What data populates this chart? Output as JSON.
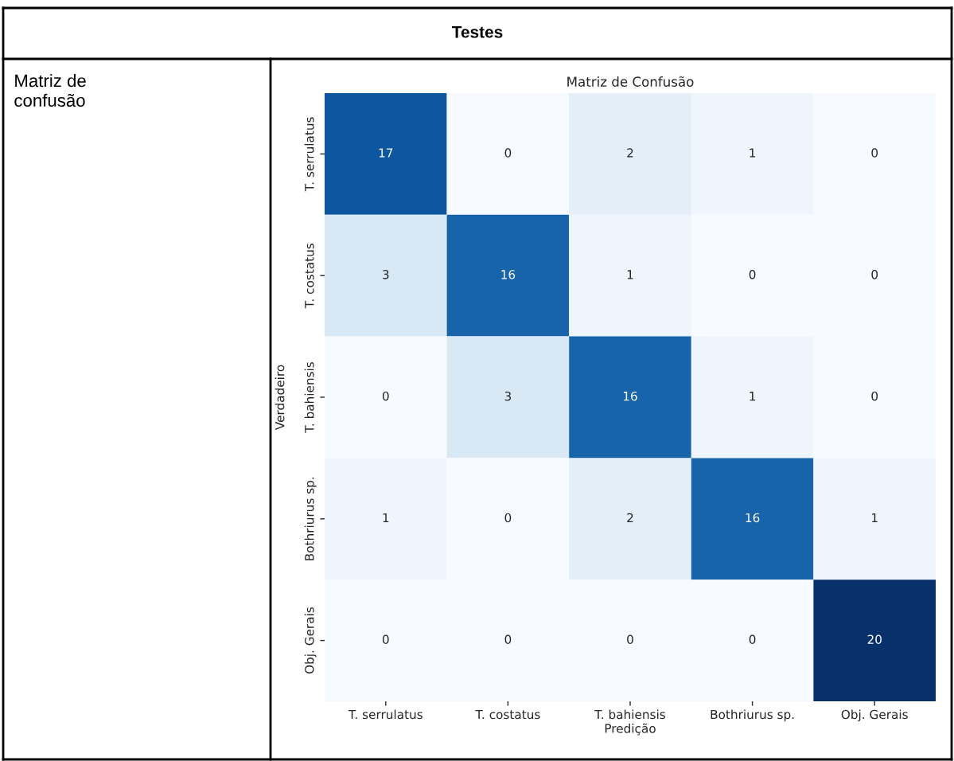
{
  "chart_data": {
    "type": "heatmap",
    "title": "Matriz de Confusão",
    "xlabel": "Predição",
    "ylabel": "Verdadeiro",
    "categories": [
      "T. serrulatus",
      "T. costatus",
      "T. bahiensis",
      "Bothriurus sp.",
      "Obj. Gerais"
    ],
    "y_categories": [
      "T. serrulatus",
      "T. costatus",
      "T. bahiensis",
      "Bothriurus sp.",
      "Obj. Gerais"
    ],
    "cells": [
      [
        17,
        0,
        2,
        1,
        0
      ],
      [
        3,
        16,
        1,
        0,
        0
      ],
      [
        0,
        3,
        16,
        1,
        0
      ],
      [
        1,
        0,
        2,
        16,
        1
      ],
      [
        0,
        0,
        0,
        0,
        20
      ]
    ],
    "data_labels": true,
    "annotations": [
      "Testes",
      "Matriz de confusão"
    ]
  }
}
